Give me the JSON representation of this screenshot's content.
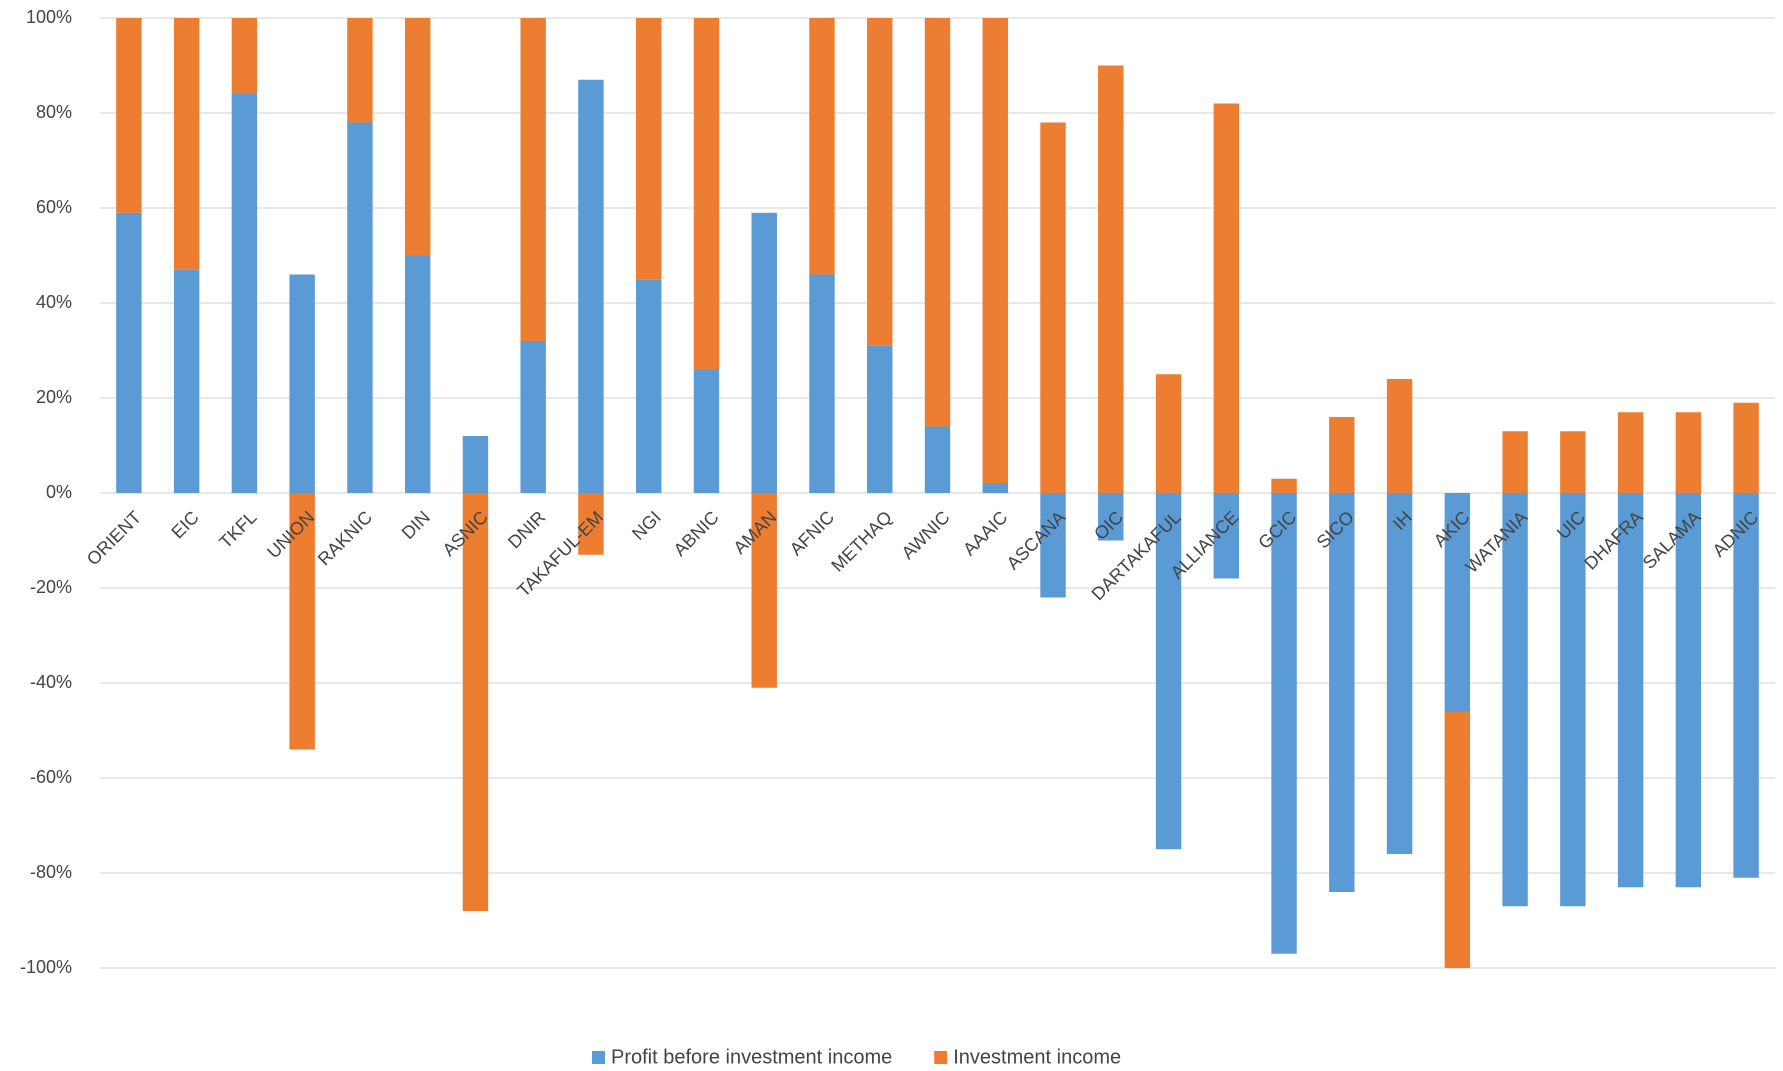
{
  "chart_data": {
    "type": "bar",
    "stacked": true,
    "categories": [
      "ORIENT",
      "EIC",
      "TKFL",
      "UNION",
      "RAKNIC",
      "DIN",
      "ASNIC",
      "DNIR",
      "TAKAFUL-EM",
      "NGI",
      "ABNIC",
      "AMAN",
      "AFNIC",
      "METHAQ",
      "AWNIC",
      "AAAIC",
      "ASCANA",
      "OIC",
      "DARTAKAFUL",
      "ALLIANCE",
      "GCIC",
      "SICO",
      "IH",
      "AKIC",
      "WATANIA",
      "UIC",
      "DHAFRA",
      "SALAMA",
      "ADNIC"
    ],
    "series": [
      {
        "name": "Profit before investment income",
        "color": "#5b9bd5",
        "values": [
          59,
          47,
          84,
          46,
          78,
          50,
          12,
          32,
          87,
          45,
          26,
          59,
          46,
          31,
          14,
          2,
          -22,
          -10,
          -75,
          -18,
          -97,
          -84,
          -76,
          -46,
          -87,
          -87,
          -83,
          -83,
          -81
        ]
      },
      {
        "name": "Investment income",
        "color": "#ed7d31",
        "values": [
          41,
          53,
          16,
          -54,
          22,
          50,
          -88,
          68,
          -13,
          55,
          74,
          -41,
          54,
          69,
          86,
          98,
          78,
          90,
          25,
          82,
          3,
          16,
          24,
          -54,
          13,
          13,
          17,
          17,
          19
        ]
      }
    ],
    "ylim": [
      -100,
      100
    ],
    "yticks": [
      {
        "value": -100,
        "label": "-100%"
      },
      {
        "value": -80,
        "label": "-80%"
      },
      {
        "value": -60,
        "label": "-60%"
      },
      {
        "value": -40,
        "label": "-40%"
      },
      {
        "value": -20,
        "label": "-20%"
      },
      {
        "value": 0,
        "label": "0%"
      },
      {
        "value": 20,
        "label": "20%"
      },
      {
        "value": 40,
        "label": "40%"
      },
      {
        "value": 60,
        "label": "60%"
      },
      {
        "value": 80,
        "label": "80%"
      },
      {
        "value": 100,
        "label": "100%"
      }
    ],
    "grid": true,
    "legend": "bottom"
  }
}
